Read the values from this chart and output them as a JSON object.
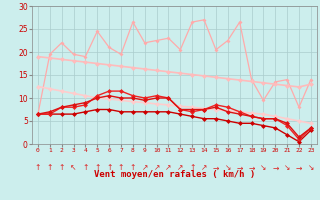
{
  "bg_color": "#cceeed",
  "grid_color": "#aacccc",
  "xlabel": "Vent moyen/en rafales ( km/h )",
  "x_ticks": [
    0,
    1,
    2,
    3,
    4,
    5,
    6,
    7,
    8,
    9,
    10,
    11,
    12,
    13,
    14,
    15,
    16,
    17,
    18,
    19,
    20,
    21,
    22,
    23
  ],
  "ylim": [
    0,
    30
  ],
  "yticks": [
    0,
    5,
    10,
    15,
    20,
    25,
    30
  ],
  "lines": [
    {
      "y": [
        6.5,
        19.5,
        22.0,
        19.5,
        19.0,
        24.5,
        21.0,
        19.5,
        26.5,
        22.0,
        22.5,
        23.0,
        20.5,
        26.5,
        27.0,
        20.5,
        22.5,
        26.5,
        14.0,
        9.5,
        13.5,
        14.0,
        8.0,
        14.0
      ],
      "color": "#ffaaaa",
      "lw": 0.9,
      "marker": "D",
      "ms": 2.0,
      "zorder": 2
    },
    {
      "y": [
        19.0,
        18.7,
        18.4,
        18.1,
        17.8,
        17.5,
        17.2,
        16.9,
        16.6,
        16.3,
        16.0,
        15.7,
        15.4,
        15.1,
        14.8,
        14.5,
        14.2,
        13.9,
        13.6,
        13.3,
        13.0,
        12.7,
        12.4,
        13.0
      ],
      "color": "#ffbbbb",
      "lw": 1.2,
      "marker": "D",
      "ms": 2.5,
      "zorder": 3
    },
    {
      "y": [
        12.5,
        12.0,
        11.5,
        11.0,
        10.5,
        10.0,
        9.8,
        9.5,
        9.2,
        9.0,
        8.7,
        8.5,
        8.2,
        8.0,
        7.7,
        7.5,
        7.2,
        7.0,
        6.7,
        6.5,
        6.0,
        5.5,
        5.0,
        4.5
      ],
      "color": "#ffcccc",
      "lw": 1.2,
      "marker": "D",
      "ms": 2.5,
      "zorder": 3
    },
    {
      "y": [
        6.5,
        6.5,
        6.5,
        6.5,
        7.0,
        7.5,
        7.5,
        7.0,
        7.0,
        7.0,
        7.0,
        7.0,
        6.5,
        6.0,
        5.5,
        5.5,
        5.0,
        4.5,
        4.5,
        4.0,
        3.5,
        2.0,
        0.5,
        3.0
      ],
      "color": "#cc0000",
      "lw": 1.0,
      "marker": "D",
      "ms": 2.5,
      "zorder": 5
    },
    {
      "y": [
        6.5,
        6.5,
        8.0,
        8.0,
        8.5,
        10.5,
        11.5,
        11.5,
        10.5,
        10.0,
        10.5,
        10.0,
        7.5,
        7.0,
        7.5,
        8.5,
        8.0,
        7.0,
        6.0,
        5.5,
        5.5,
        4.0,
        1.0,
        3.5
      ],
      "color": "#ee2222",
      "lw": 1.0,
      "marker": "D",
      "ms": 2.5,
      "zorder": 5
    },
    {
      "y": [
        6.5,
        7.0,
        8.0,
        8.5,
        9.0,
        10.0,
        10.5,
        10.0,
        10.0,
        9.5,
        10.0,
        10.0,
        7.5,
        7.5,
        7.5,
        8.0,
        7.0,
        6.5,
        6.0,
        5.5,
        5.5,
        4.5,
        1.5,
        3.5
      ],
      "color": "#dd1111",
      "lw": 1.0,
      "marker": "D",
      "ms": 2.5,
      "zorder": 5
    }
  ],
  "arrow_symbols": [
    "↑",
    "↑",
    "↑",
    "↖",
    "↑",
    "↑",
    "↑",
    "↑",
    "↑",
    "↗",
    "↗",
    "↗",
    "↗",
    "↑",
    "↗",
    "→",
    "↘",
    "→",
    "→",
    "↘",
    "→",
    "↘",
    "→",
    "↘"
  ],
  "arrow_color": "#dd2222",
  "arrow_fontsize": 5.5
}
